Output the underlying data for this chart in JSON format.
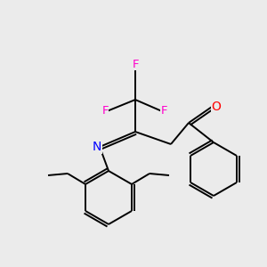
{
  "background_color": "#ebebeb",
  "bond_color": "#000000",
  "atom_colors": {
    "F": "#ff00cc",
    "O": "#ff0000",
    "N": "#0000ff",
    "C": "#000000"
  },
  "figsize": [
    3.0,
    3.0
  ],
  "dpi": 100
}
